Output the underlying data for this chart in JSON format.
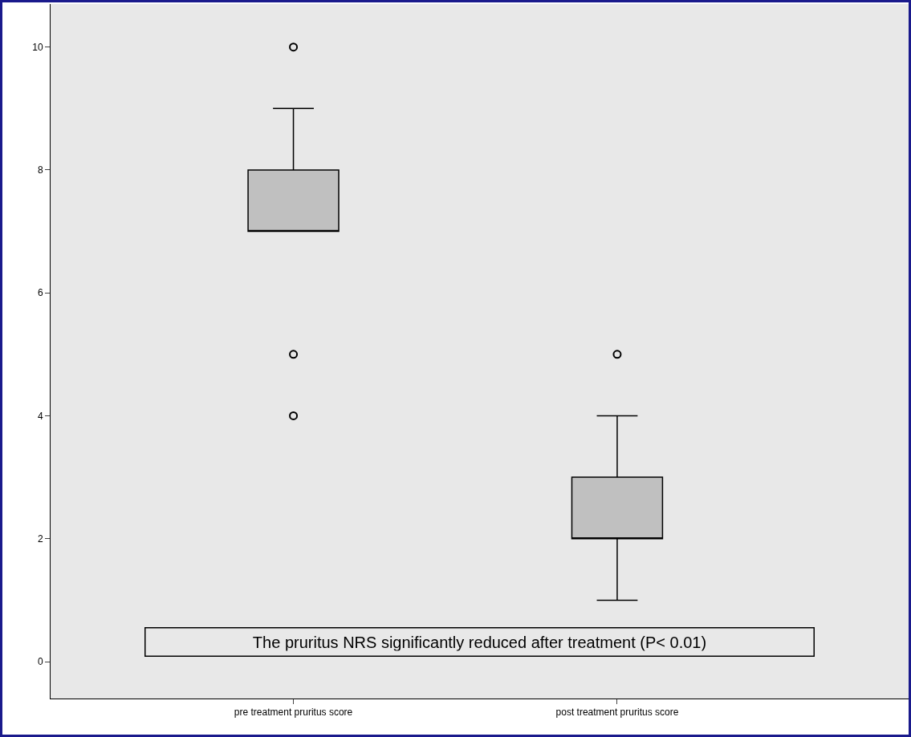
{
  "chart_data": {
    "type": "box",
    "categories": [
      "pre treatment pruritus score",
      "post treatment pruritus score"
    ],
    "boxes": [
      {
        "low": 7,
        "q1": 7,
        "median": 7,
        "q3": 8,
        "high": 9,
        "outliers": [
          10,
          5,
          4
        ]
      },
      {
        "low": 1,
        "q1": 2,
        "median": 2,
        "q3": 3,
        "high": 4,
        "outliers": [
          5
        ]
      }
    ],
    "color": "#c0c0c0",
    "ylim": [
      -0.6,
      10.7
    ],
    "yticks": [
      0,
      2,
      4,
      6,
      8,
      10
    ],
    "grid": false,
    "annotations": [
      "The pruritus NRS significantly reduced after treatment (P< 0.01)"
    ]
  }
}
